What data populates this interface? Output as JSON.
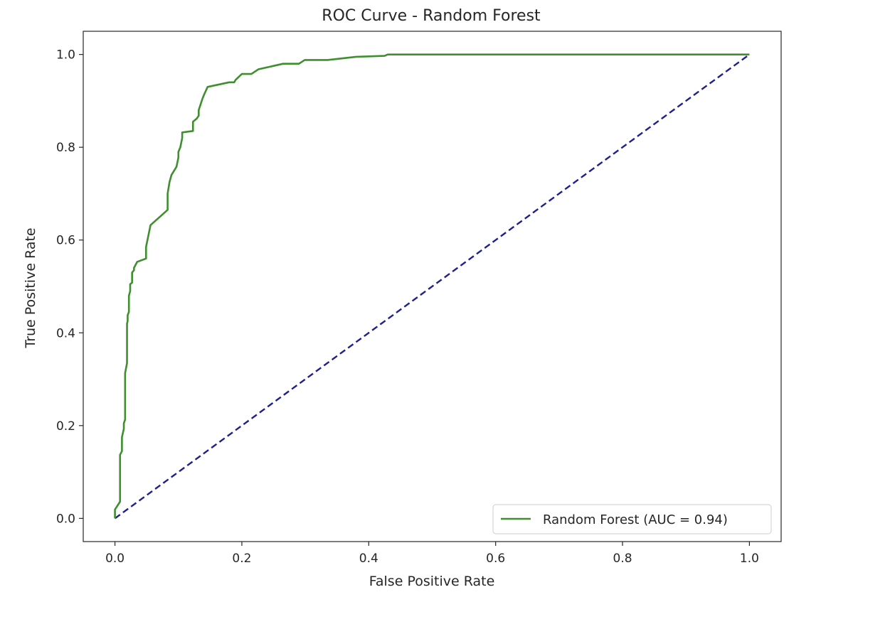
{
  "chart_data": {
    "type": "line",
    "title": "ROC Curve - Random Forest",
    "xlabel": "False Positive Rate",
    "ylabel": "True Positive Rate",
    "xlim": [
      -0.05,
      1.05
    ],
    "ylim": [
      -0.05,
      1.05
    ],
    "xticks": [
      "0.0",
      "0.2",
      "0.4",
      "0.6",
      "0.8",
      "1.0"
    ],
    "yticks": [
      "0.0",
      "0.2",
      "0.4",
      "0.6",
      "0.8",
      "1.0"
    ],
    "grid": false,
    "legend_position": "lower-right",
    "series": [
      {
        "name": "Random Forest (AUC = 0.94)",
        "color": "#3f8f2f",
        "style": "solid",
        "x": [
          0.0,
          0.0,
          0.008,
          0.008,
          0.011,
          0.011,
          0.014,
          0.014,
          0.016,
          0.016,
          0.019,
          0.019,
          0.02,
          0.02,
          0.022,
          0.022,
          0.024,
          0.024,
          0.027,
          0.027,
          0.03,
          0.03,
          0.035,
          0.049,
          0.049,
          0.056,
          0.083,
          0.083,
          0.086,
          0.089,
          0.097,
          0.1,
          0.1,
          0.103,
          0.106,
          0.106,
          0.123,
          0.123,
          0.129,
          0.132,
          0.132,
          0.138,
          0.141,
          0.146,
          0.18,
          0.188,
          0.19,
          0.2,
          0.215,
          0.226,
          0.265,
          0.29,
          0.299,
          0.335,
          0.38,
          0.425,
          0.43,
          1.0
        ],
        "y": [
          0.0,
          0.019,
          0.036,
          0.137,
          0.145,
          0.175,
          0.193,
          0.205,
          0.213,
          0.313,
          0.335,
          0.42,
          0.425,
          0.438,
          0.445,
          0.48,
          0.49,
          0.505,
          0.508,
          0.53,
          0.535,
          0.54,
          0.553,
          0.56,
          0.585,
          0.632,
          0.665,
          0.7,
          0.725,
          0.74,
          0.758,
          0.778,
          0.79,
          0.8,
          0.82,
          0.832,
          0.835,
          0.855,
          0.862,
          0.868,
          0.88,
          0.905,
          0.915,
          0.93,
          0.94,
          0.94,
          0.945,
          0.958,
          0.958,
          0.968,
          0.98,
          0.98,
          0.988,
          0.988,
          0.995,
          0.997,
          1.0,
          1.0
        ]
      },
      {
        "color": "#1f1f8f",
        "style": "dashed",
        "x": [
          0.0,
          1.0
        ],
        "y": [
          0.0,
          1.0
        ]
      }
    ]
  }
}
